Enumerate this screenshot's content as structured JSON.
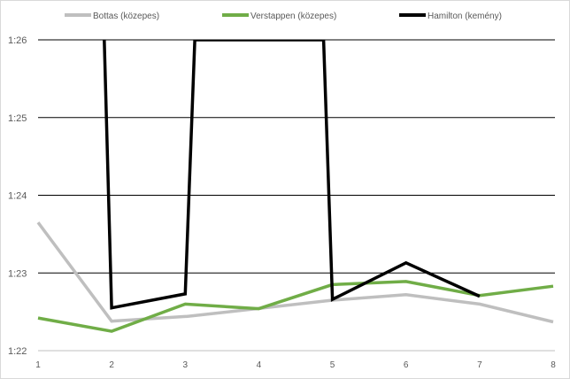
{
  "chart_data": {
    "type": "line",
    "title": "",
    "xlabel": "",
    "ylabel": "",
    "x": [
      1,
      2,
      3,
      4,
      5,
      6,
      7,
      8
    ],
    "x_tick_labels": [
      "1",
      "2",
      "3",
      "4",
      "5",
      "6",
      "7",
      "8"
    ],
    "y_tick_labels": [
      "1:22",
      "1:23",
      "1:24",
      "1:25",
      "1:26"
    ],
    "ylim_seconds": [
      82,
      86
    ],
    "grid": true,
    "legend_position": "top",
    "series": [
      {
        "name": "Bottas (közepes)",
        "color": "#bfbfbf",
        "x": [
          1,
          2,
          3,
          3.02,
          5,
          6,
          7,
          8
        ],
        "values": [
          83.65,
          82.38,
          82.44,
          82.44,
          82.65,
          82.72,
          82.6,
          82.37
        ]
      },
      {
        "name": "Verstappen (közepes)",
        "color": "#70ad47",
        "x": [
          1,
          2,
          3,
          4,
          5,
          6,
          7,
          8
        ],
        "values": [
          82.42,
          82.25,
          82.6,
          82.54,
          82.85,
          82.89,
          82.71,
          82.83
        ]
      },
      {
        "name": "Hamilton (kemény)",
        "color": "#000000",
        "x": [
          1.9,
          2,
          3,
          3.13,
          4.88,
          5,
          6,
          7
        ],
        "values": [
          86.0,
          82.55,
          82.73,
          86.0,
          86.0,
          82.66,
          83.13,
          82.7
        ]
      }
    ]
  }
}
